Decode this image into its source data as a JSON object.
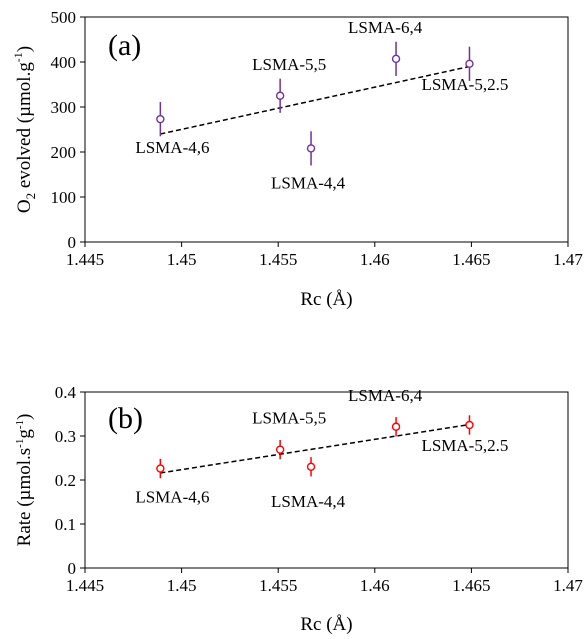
{
  "chart_data": [
    {
      "type": "scatter",
      "panel_label": "(a)",
      "xlabel": "Rc (Å)",
      "ylabel": {
        "base": "O",
        "sub": "2",
        "rest": " evolved (µmol.g",
        "sup": "-1",
        "end": ")"
      },
      "xlim": [
        1.445,
        1.47
      ],
      "ylim": [
        0,
        500
      ],
      "x_ticks": [
        "1.445",
        "1.45",
        "1.455",
        "1.46",
        "1.465",
        "1.47"
      ],
      "y_ticks": [
        "0",
        "100",
        "200",
        "300",
        "400",
        "500"
      ],
      "grid": false,
      "color": "#7030a0",
      "points": [
        {
          "label": "LSMA-4,6",
          "x": 1.4489,
          "y": 273,
          "err": 38
        },
        {
          "label": "LSMA-5,5",
          "x": 1.4551,
          "y": 325,
          "err": 38
        },
        {
          "label": "LSMA-4,4",
          "x": 1.4567,
          "y": 208,
          "err": 38
        },
        {
          "label": "LSMA-6,4",
          "x": 1.4611,
          "y": 407,
          "err": 38
        },
        {
          "label": "LSMA-5,2.5",
          "x": 1.4649,
          "y": 396,
          "err": 38
        }
      ],
      "trendline": {
        "x": [
          1.4489,
          1.4649
        ],
        "y": [
          240,
          390
        ],
        "style": "dashed"
      }
    },
    {
      "type": "scatter",
      "panel_label": "(b)",
      "xlabel": "Rc (Å)",
      "ylabel": {
        "base": "Rate (µmol.s",
        "sup1": "-1",
        "mid": "g",
        "sup2": "-1",
        "end": ")"
      },
      "xlim": [
        1.445,
        1.47
      ],
      "ylim": [
        0,
        0.4
      ],
      "x_ticks": [
        "1.445",
        "1.45",
        "1.455",
        "1.46",
        "1.465",
        "1.47"
      ],
      "y_ticks": [
        "0",
        "0.1",
        "0.2",
        "0.3",
        "0.4"
      ],
      "grid": false,
      "color": "#ff0000",
      "points": [
        {
          "label": "LSMA-4,6",
          "x": 1.4489,
          "y": 0.226,
          "err": 0.022
        },
        {
          "label": "LSMA-5,5",
          "x": 1.4551,
          "y": 0.269,
          "err": 0.022
        },
        {
          "label": "LSMA-4,4",
          "x": 1.4567,
          "y": 0.23,
          "err": 0.022
        },
        {
          "label": "LSMA-6,4",
          "x": 1.4611,
          "y": 0.321,
          "err": 0.022
        },
        {
          "label": "LSMA-5,2.5",
          "x": 1.4649,
          "y": 0.325,
          "err": 0.022
        }
      ],
      "trendline": {
        "x": [
          1.4489,
          1.4649
        ],
        "y": [
          0.216,
          0.326
        ],
        "style": "dashed"
      }
    }
  ]
}
